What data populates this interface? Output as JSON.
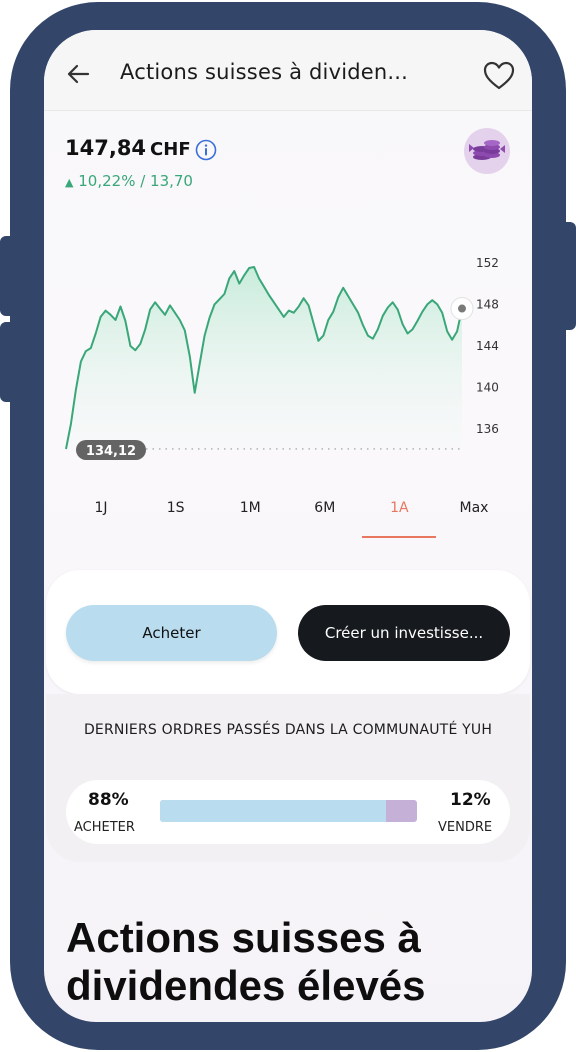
{
  "header": {
    "title": "Actions suisses à dividen..."
  },
  "quote": {
    "price": "147,84",
    "currency": "CHF",
    "change": "10,22% / 13,70",
    "change_arrow": "▲"
  },
  "chart_data": {
    "type": "line",
    "yticks": [
      136,
      140,
      144,
      148,
      152
    ],
    "ylim": [
      134,
      154
    ],
    "start_label": "134,12",
    "x": [
      0,
      1,
      2,
      3,
      4,
      5,
      6,
      7,
      8,
      9,
      10,
      11,
      12,
      13,
      14,
      15,
      16,
      17,
      18,
      19,
      20,
      21,
      22,
      23,
      24,
      25,
      26,
      27,
      28,
      29,
      30,
      31,
      32,
      33,
      34,
      35,
      36,
      37,
      38,
      39,
      40,
      41,
      42,
      43,
      44,
      45,
      46,
      47,
      48,
      49,
      50,
      51,
      52,
      53,
      54,
      55,
      56,
      57,
      58,
      59,
      60,
      61,
      62,
      63,
      64,
      65,
      66,
      67,
      68,
      69,
      70,
      71,
      72,
      73,
      74,
      75,
      76,
      77,
      78,
      79,
      80
    ],
    "values": [
      134.1,
      136.5,
      139.8,
      142.5,
      143.5,
      143.8,
      145.2,
      146.8,
      147.4,
      147.0,
      146.5,
      147.8,
      146.4,
      144.0,
      143.6,
      144.2,
      145.6,
      147.5,
      148.2,
      147.6,
      147.0,
      147.9,
      147.2,
      146.5,
      145.5,
      143.0,
      139.5,
      142.3,
      145.0,
      146.7,
      148.0,
      148.5,
      149.0,
      150.5,
      151.2,
      150.0,
      150.8,
      151.5,
      151.6,
      150.5,
      149.7,
      148.9,
      148.2,
      147.5,
      146.8,
      147.4,
      147.2,
      147.8,
      148.6,
      147.9,
      146.2,
      144.5,
      145.0,
      146.5,
      147.3,
      148.7,
      149.6,
      148.8,
      148.0,
      147.2,
      146.0,
      145.0,
      144.7,
      145.6,
      146.9,
      147.7,
      148.2,
      147.5,
      146.1,
      145.2,
      145.6,
      146.4,
      147.3,
      148.0,
      148.4,
      148.0,
      147.2,
      145.4,
      144.6,
      145.4,
      147.6
    ]
  },
  "ranges": {
    "items": [
      "1J",
      "1S",
      "1M",
      "6M",
      "1A",
      "Max"
    ],
    "active": "1A"
  },
  "actions": {
    "buy": "Acheter",
    "invest": "Créer un investisse..."
  },
  "community": {
    "title": "DERNIERS ORDRES PASSÉS DANS LA COMMUNAUTÉ YUH",
    "buy_pct": "88%",
    "buy_label": "ACHETER",
    "sell_pct": "12%",
    "sell_label": "VENDRE",
    "buy_fraction": 0.88
  },
  "page": {
    "title": "Actions suisses à dividendes élevés"
  },
  "colors": {
    "accent": "#e8775f",
    "positive": "#3aa779",
    "buy": "#b9dcef",
    "sell": "#c5b1d8",
    "frame": "#33466a"
  }
}
